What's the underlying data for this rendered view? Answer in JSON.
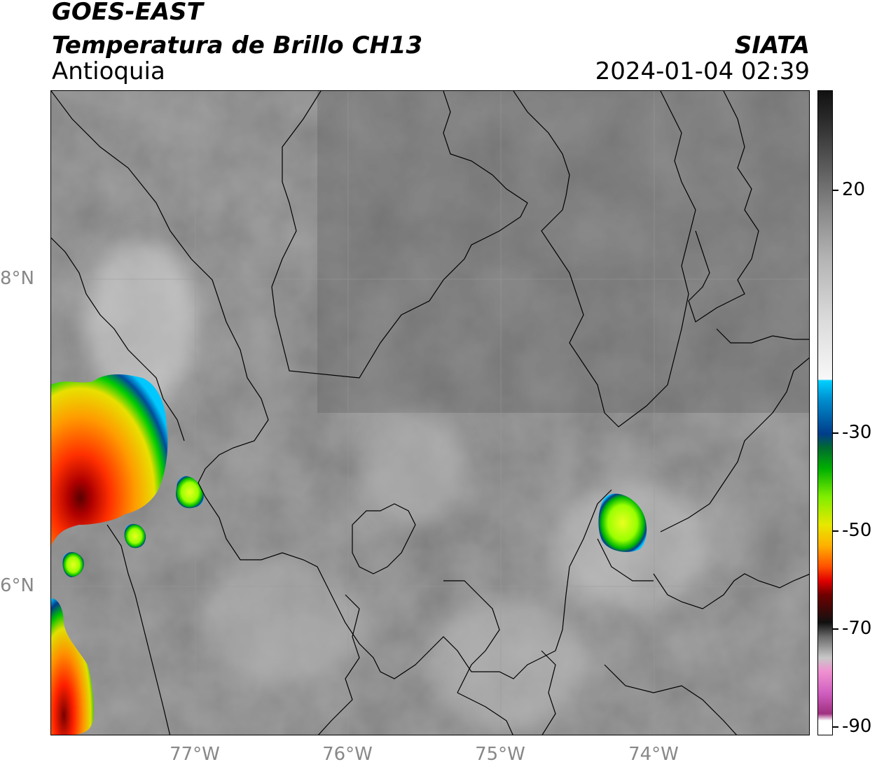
{
  "title": {
    "line1": "GOES-EAST",
    "line2": "Temperatura de Brillo CH13",
    "region": "Antioquia",
    "organization": "SIATA",
    "timestamp": "2024-01-04 02:39"
  },
  "map": {
    "lat_labels": [
      "8°N",
      "6°N"
    ],
    "lon_labels": [
      "77°W",
      "76°W",
      "75°W",
      "74°W"
    ]
  },
  "colorbar": {
    "tick_labels": [
      "20",
      "-30",
      "-50",
      "-70",
      "-90"
    ]
  }
}
